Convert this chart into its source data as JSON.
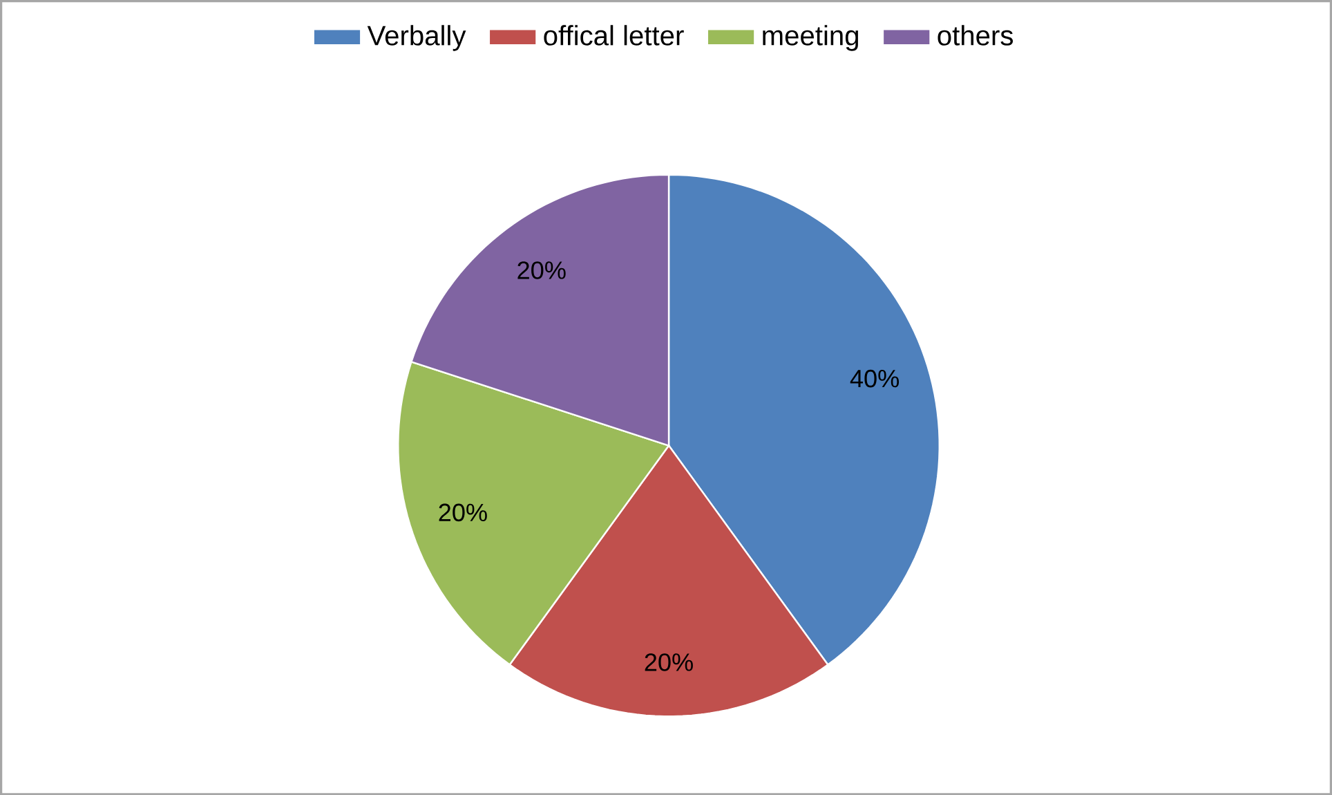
{
  "chart_data": {
    "type": "pie",
    "categories": [
      "Verbally",
      "offical letter",
      "meeting",
      "others"
    ],
    "values": [
      40,
      20,
      20,
      20
    ],
    "colors": [
      "#4f81bd",
      "#c0504d",
      "#9bbb59",
      "#8064a2"
    ],
    "value_labels": [
      "40%",
      "20%",
      "20%",
      "20%"
    ],
    "legend": "top"
  }
}
